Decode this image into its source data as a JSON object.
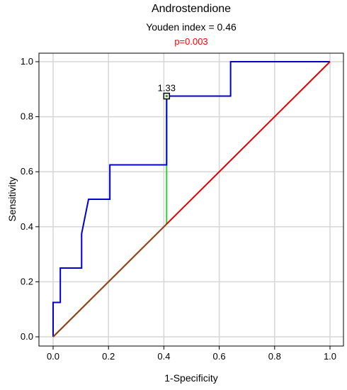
{
  "chart_data": {
    "type": "line",
    "title": "Androstendione",
    "subtitle": "Youden index  = 0.46",
    "pvalue": "p=0.003",
    "xlabel": "1-Specificity",
    "ylabel": "Sensitivity",
    "xlim": [
      0,
      1
    ],
    "ylim": [
      0,
      1
    ],
    "xticks": [
      0.0,
      0.2,
      0.4,
      0.6,
      0.8,
      1.0
    ],
    "yticks": [
      0.0,
      0.2,
      0.4,
      0.6,
      0.8,
      1.0
    ],
    "xtick_labels": [
      "0.0",
      "0.2",
      "0.4",
      "0.6",
      "0.8",
      "1.0"
    ],
    "ytick_labels": [
      "0.0",
      "0.2",
      "0.4",
      "0.6",
      "0.8",
      "1.0"
    ],
    "grid": true,
    "series": [
      {
        "color": "#0000cc",
        "points": [
          [
            0.0,
            0.0
          ],
          [
            0.0,
            0.125
          ],
          [
            0.026,
            0.125
          ],
          [
            0.026,
            0.25
          ],
          [
            0.103,
            0.25
          ],
          [
            0.103,
            0.375
          ],
          [
            0.128,
            0.5
          ],
          [
            0.205,
            0.5
          ],
          [
            0.205,
            0.625
          ],
          [
            0.41,
            0.625
          ],
          [
            0.41,
            0.875
          ],
          [
            0.641,
            0.875
          ],
          [
            0.641,
            1.0
          ],
          [
            1.0,
            1.0
          ]
        ]
      },
      {
        "color": "#dd0000",
        "points": [
          [
            0,
            0
          ],
          [
            1,
            1
          ]
        ]
      }
    ],
    "youden_line": {
      "x": 0.41,
      "y_from": 0.41,
      "y_to": 0.875,
      "color": "#33cc33"
    },
    "cutoff_marker": {
      "x": 0.41,
      "y": 0.875,
      "label": "1.33"
    },
    "pvalue_color": "#ff0000"
  }
}
